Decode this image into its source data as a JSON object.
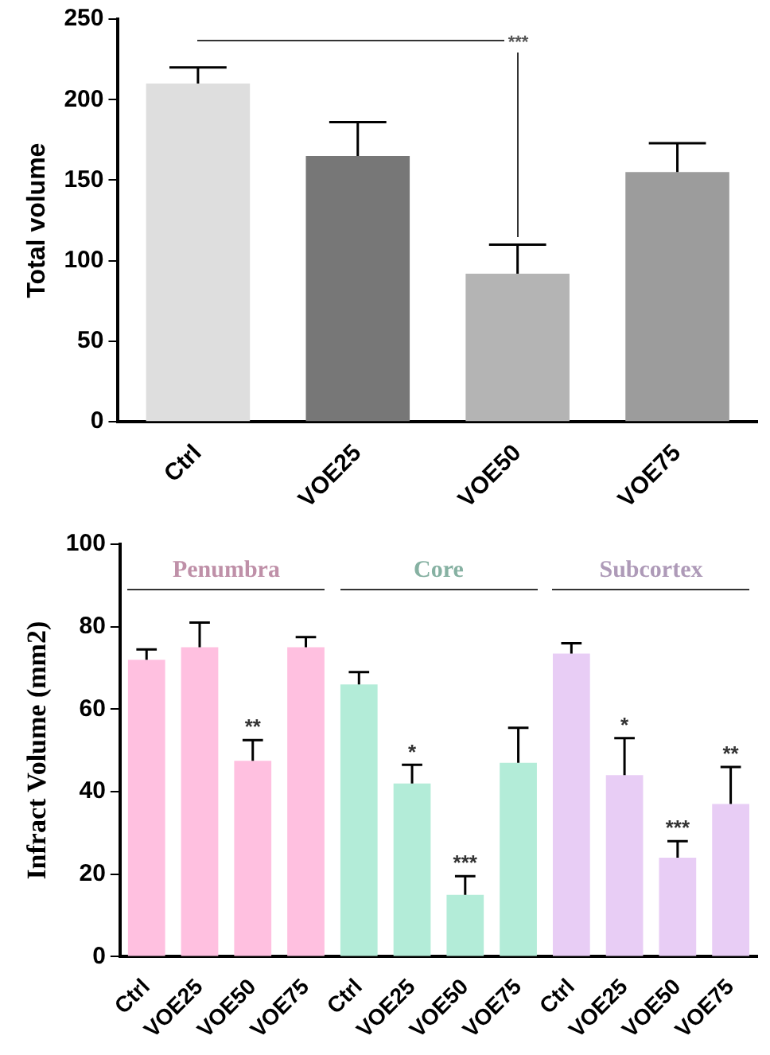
{
  "chart_data": [
    {
      "type": "bar",
      "ylabel": "Total volume",
      "categories": [
        "Ctrl",
        "VOE25",
        "VOE50",
        "VOE75"
      ],
      "values": [
        210,
        165,
        92,
        155
      ],
      "colors": [
        "#dedede",
        "#777777",
        "#b4b4b4",
        "#9c9c9c"
      ],
      "errors": [
        [
          210,
          220
        ],
        [
          165,
          186
        ],
        [
          92,
          110
        ],
        [
          155,
          173
        ]
      ],
      "ylim": [
        0,
        250
      ],
      "yticks": [
        0,
        50,
        100,
        150,
        200,
        250
      ],
      "annotations": [
        "***"
      ]
    },
    {
      "type": "bar",
      "ylabel": "Infract Volume (mm2)",
      "categories": [
        "Ctrl",
        "VOE25",
        "VOE50",
        "VOE75",
        "Ctrl",
        "VOE25",
        "VOE50",
        "VOE75",
        "Ctrl",
        "VOE25",
        "VOE50",
        "VOE75"
      ],
      "values": [
        72,
        75,
        47.5,
        75,
        66,
        42,
        15,
        47,
        73.5,
        44,
        24,
        37
      ],
      "colors": [
        "#ffc0e0",
        "#ffc0e0",
        "#ffc0e0",
        "#ffc0e0",
        "#b3ecd8",
        "#b3ecd8",
        "#b3ecd8",
        "#b3ecd8",
        "#e8cdf5",
        "#e8cdf5",
        "#e8cdf5",
        "#e8cdf5"
      ],
      "errors": [
        [
          72,
          74.5
        ],
        [
          75,
          81
        ],
        [
          47.5,
          52.5
        ],
        [
          75,
          77.5
        ],
        [
          66,
          69
        ],
        [
          42,
          46.5
        ],
        [
          15,
          19.5
        ],
        [
          47,
          55.5
        ],
        [
          73.5,
          76
        ],
        [
          44,
          53
        ],
        [
          24,
          28
        ],
        [
          37,
          46
        ]
      ],
      "value_labels": [
        null,
        null,
        "**",
        null,
        null,
        "*",
        "***",
        null,
        null,
        "*",
        "***",
        "**"
      ],
      "ylim": [
        0,
        100
      ],
      "yticks": [
        0,
        20,
        40,
        60,
        80,
        100
      ],
      "annotations": [
        "Penumbra",
        "Core",
        "Subcortex"
      ]
    }
  ]
}
